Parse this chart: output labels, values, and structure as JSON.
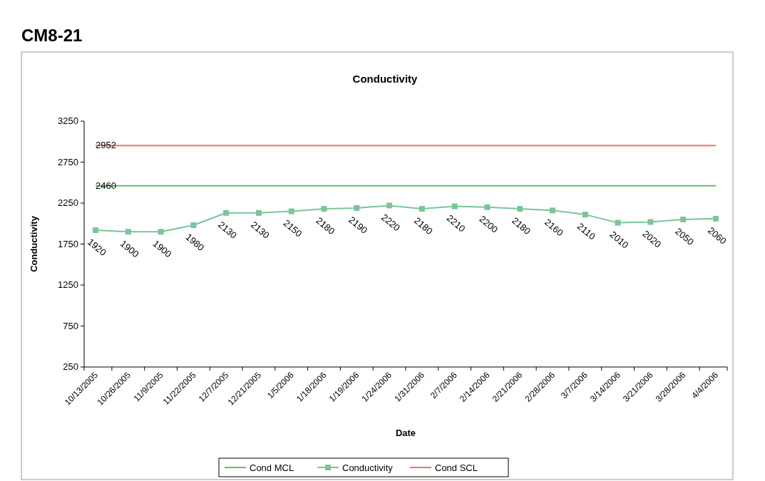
{
  "chart_data": {
    "type": "line",
    "title": "CM8-21",
    "subtitle": "Conductivity",
    "xlabel": "Date",
    "ylabel": "Conductivity",
    "categories": [
      "10/13/2005",
      "10/26/2005",
      "11/9/2005",
      "11/22/2005",
      "12/7/2005",
      "12/21/2005",
      "1/5/2006",
      "1/18/2006",
      "1/19/2006",
      "1/24/2006",
      "1/31/2006",
      "2/7/2006",
      "2/14/2006",
      "2/21/2006",
      "2/28/2006",
      "3/7/2006",
      "3/14/2006",
      "3/21/2006",
      "3/28/2006",
      "4/4/2006"
    ],
    "series": [
      {
        "name": "Cond MCL",
        "color": "#66bb66",
        "marker": "none",
        "values": [
          2460,
          2460,
          2460,
          2460,
          2460,
          2460,
          2460,
          2460,
          2460,
          2460,
          2460,
          2460,
          2460,
          2460,
          2460,
          2460,
          2460,
          2460,
          2460,
          2460
        ],
        "value_labels": [
          "2460",
          null,
          null,
          null,
          null,
          null,
          null,
          null,
          null,
          null,
          null,
          null,
          null,
          null,
          null,
          null,
          null,
          null,
          null,
          null
        ]
      },
      {
        "name": "Conductivity",
        "color": "#7cc49a",
        "marker": "square",
        "values": [
          1920,
          1900,
          1900,
          1980,
          2130,
          2130,
          2150,
          2180,
          2190,
          2220,
          2180,
          2210,
          2200,
          2180,
          2160,
          2110,
          2010,
          2020,
          2050,
          2060
        ],
        "value_labels": [
          "1920",
          "1900",
          "1900",
          "1980",
          "2130",
          "2130",
          "2150",
          "2180",
          "2190",
          "2220",
          "2180",
          "2210",
          "2200",
          "2180",
          "2160",
          "2110",
          "2010",
          "2020",
          "2050",
          "2060"
        ]
      },
      {
        "name": "Cond SCL",
        "color": "#f07070",
        "marker": "none",
        "values": [
          2952,
          2952,
          2952,
          2952,
          2952,
          2952,
          2952,
          2952,
          2952,
          2952,
          2952,
          2952,
          2952,
          2952,
          2952,
          2952,
          2952,
          2952,
          2952,
          2952
        ],
        "value_labels": [
          "2952",
          null,
          null,
          null,
          null,
          null,
          null,
          null,
          null,
          null,
          null,
          null,
          null,
          null,
          null,
          null,
          null,
          null,
          null,
          null
        ]
      }
    ],
    "ylim": [
      250,
      3250
    ],
    "yticks": [
      250,
      750,
      1250,
      1750,
      2250,
      2750,
      3250
    ],
    "legend": "bottom",
    "grid": false
  }
}
